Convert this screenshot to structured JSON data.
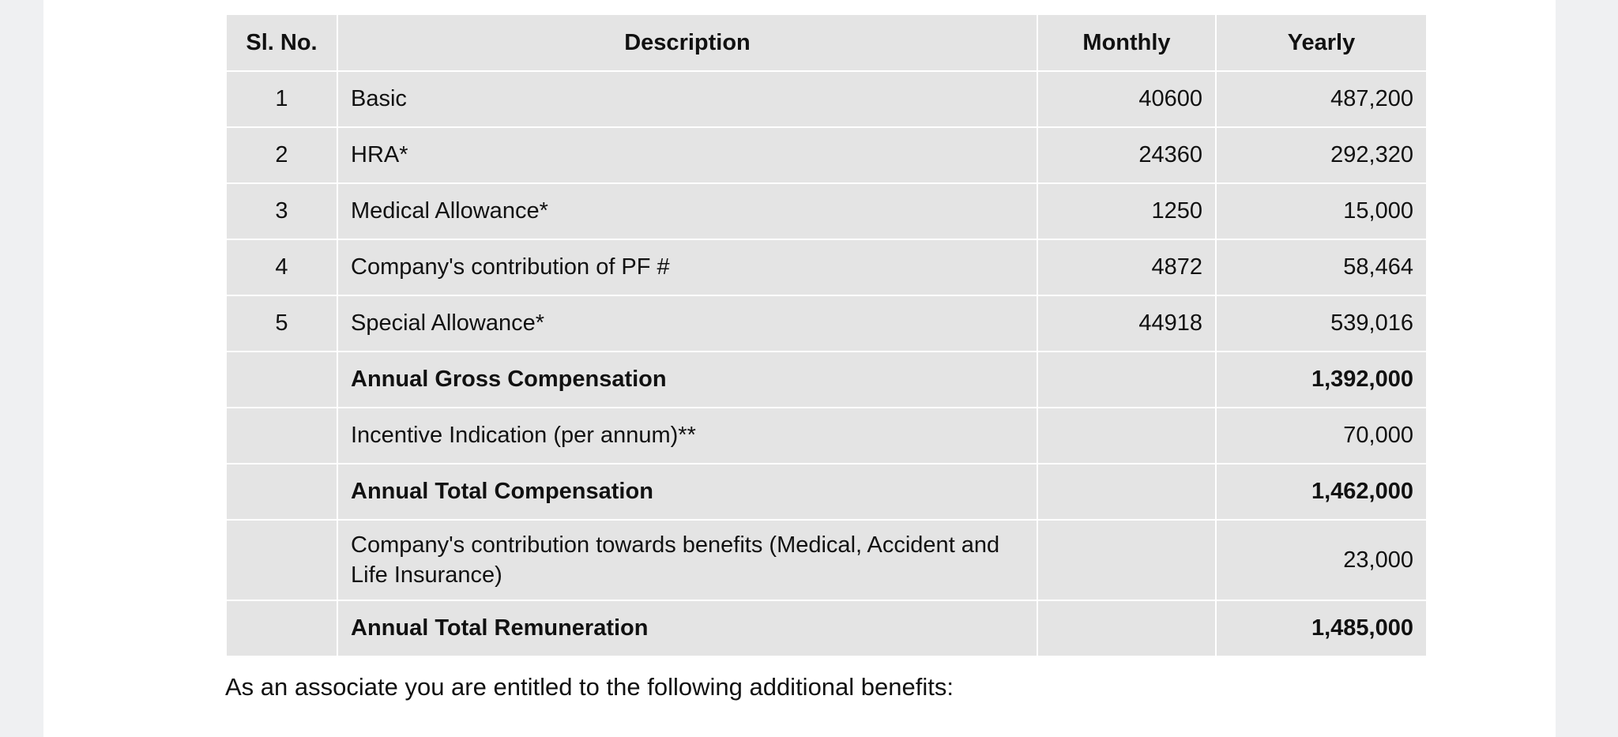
{
  "table": {
    "header": [
      "Sl. No.",
      "Description",
      "Monthly",
      "Yearly"
    ],
    "rows": [
      {
        "sl": "1",
        "description": "Basic",
        "monthly": "40600",
        "yearly": "487,200"
      },
      {
        "sl": "2",
        "description": "HRA*",
        "monthly": "24360",
        "yearly": "292,320"
      },
      {
        "sl": "3",
        "description": "Medical Allowance*",
        "monthly": "1250",
        "yearly": "15,000"
      },
      {
        "sl": "4",
        "description": "Company's contribution of PF #",
        "monthly": "4872",
        "yearly": "58,464"
      },
      {
        "sl": "5",
        "description": "Special Allowance*",
        "monthly": "44918",
        "yearly": "539,016"
      },
      {
        "description": "Annual Gross Compensation",
        "yearly": "1,392,000",
        "bold": true
      },
      {
        "description": "Incentive Indication (per annum)**",
        "yearly": "70,000"
      },
      {
        "description": "Annual Total Compensation",
        "yearly": "1,462,000",
        "bold": true
      },
      {
        "description": "Company's contribution towards benefits (Medical, Accident and Life Insurance)",
        "yearly": "23,000"
      },
      {
        "description": "Annual Total Remuneration",
        "yearly": "1,485,000",
        "bold": true
      }
    ]
  },
  "footer_text": "As an associate you are entitled to the following additional benefits:"
}
